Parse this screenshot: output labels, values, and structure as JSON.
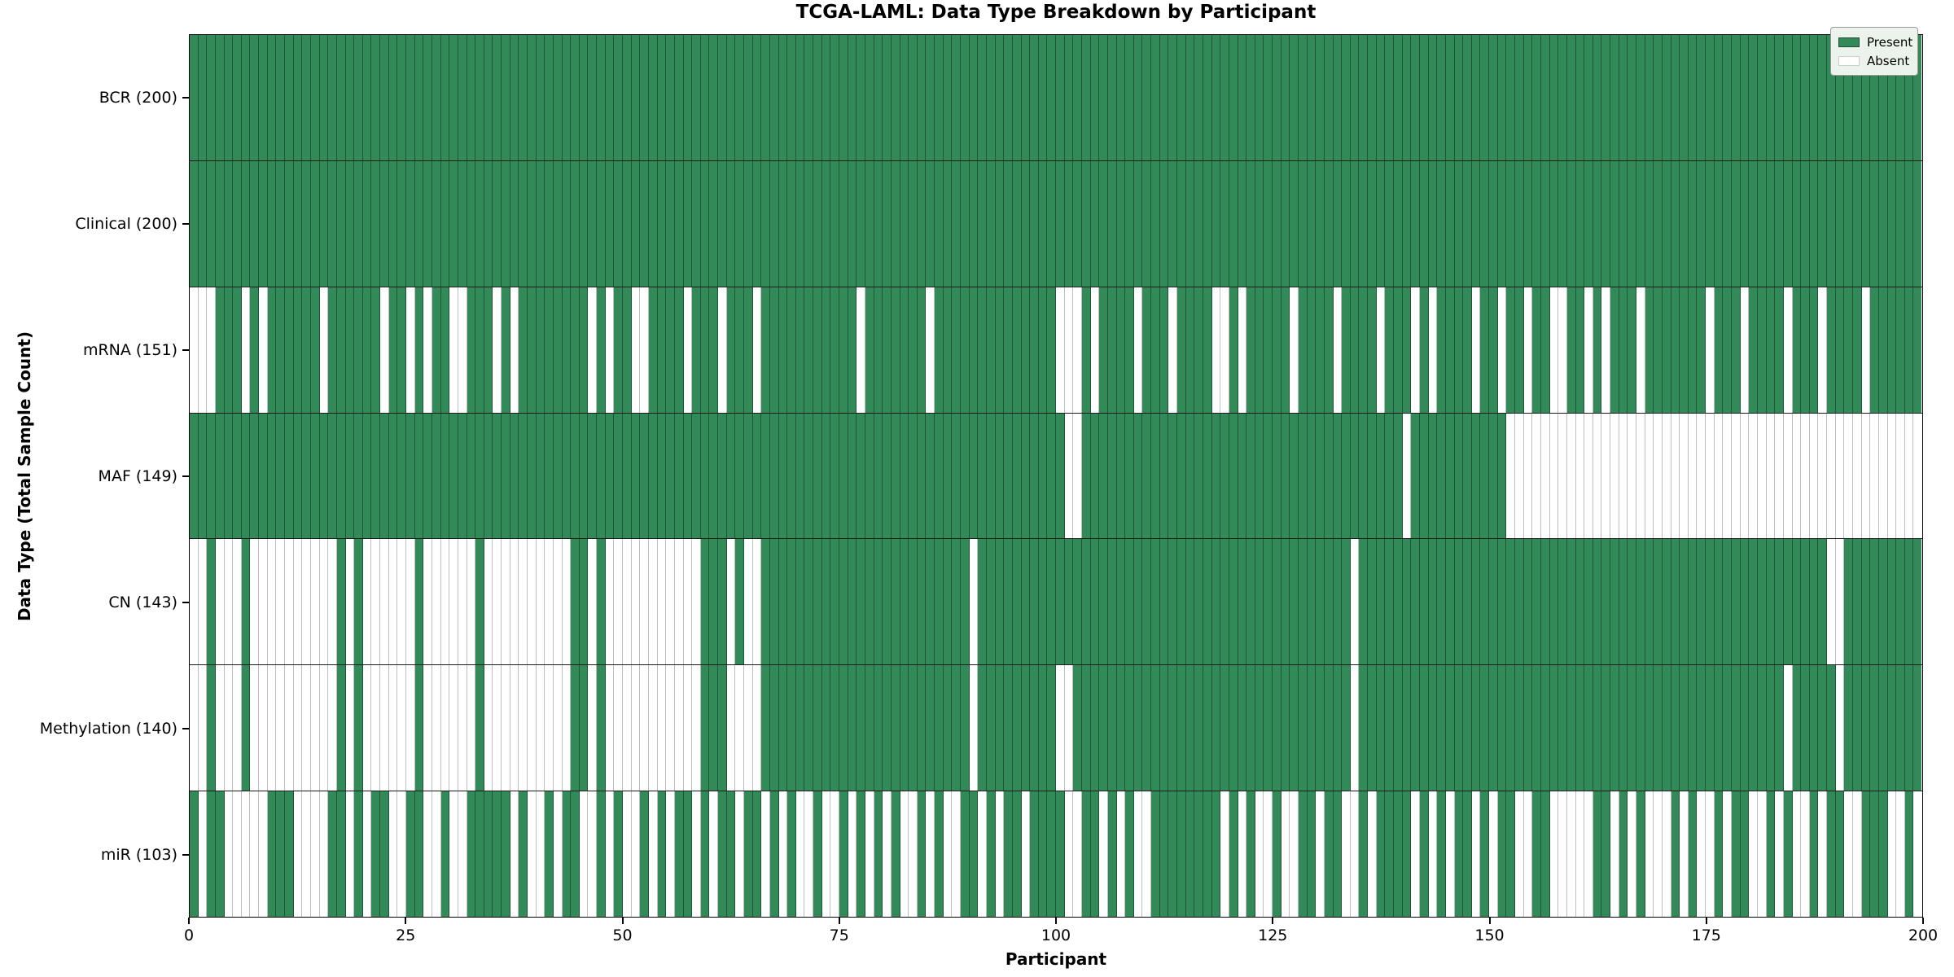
{
  "title": "TCGA-LAML: Data Type Breakdown by Participant",
  "axes": {
    "x_label": "Participant",
    "y_label": "Data Type (Total Sample Count)"
  },
  "legend": {
    "items": [
      {
        "label": "Present",
        "color": "#338a59"
      },
      {
        "label": "Absent",
        "color": "#ffffff"
      }
    ]
  },
  "colors": {
    "present": "#338a59",
    "absent": "#ffffff",
    "cell_edge_present": "rgba(15,40,25,0.55)",
    "cell_edge_absent": "rgba(125,125,125,0.5)",
    "row_divider": "#1a1a1a",
    "plot_border": "#000000",
    "legend_bg": "#ecf2ec",
    "legend_border": "#999999"
  },
  "x_axis": {
    "min": 0,
    "max": 200,
    "ticks": [
      0,
      25,
      50,
      75,
      100,
      125,
      150,
      175,
      200
    ]
  },
  "chart_data": {
    "type": "heatmap",
    "title": "TCGA-LAML: Data Type Breakdown by Participant",
    "xlabel": "Participant",
    "ylabel": "Data Type (Total Sample Count)",
    "legend": [
      "Present",
      "Absent"
    ],
    "n_participants": 200,
    "x_range": [
      0,
      200
    ],
    "rows": [
      {
        "label": "BCR (200)",
        "data_type": "BCR",
        "present_count": 200,
        "absent_count": 0,
        "absent_participants": []
      },
      {
        "label": "Clinical (200)",
        "data_type": "Clinical",
        "present_count": 200,
        "absent_count": 0,
        "absent_participants": []
      },
      {
        "label": "mRNA (151)",
        "data_type": "mRNA",
        "present_count": 151,
        "absent_count": 49,
        "absent_participants": [
          0,
          1,
          2,
          6,
          8,
          15,
          22,
          25,
          27,
          30,
          31,
          35,
          37,
          46,
          48,
          51,
          52,
          57,
          61,
          65,
          77,
          85,
          100,
          101,
          102,
          104,
          109,
          113,
          118,
          119,
          121,
          127,
          132,
          137,
          141,
          143,
          148,
          151,
          154,
          157,
          158,
          161,
          163,
          167,
          175,
          179,
          184,
          188,
          193
        ]
      },
      {
        "label": "MAF (149)",
        "data_type": "MAF",
        "present_count": 149,
        "absent_count": 51,
        "absent_participants": [
          101,
          102,
          140,
          152,
          153,
          154,
          155,
          156,
          157,
          158,
          159,
          160,
          161,
          162,
          163,
          164,
          165,
          166,
          167,
          168,
          169,
          170,
          171,
          172,
          173,
          174,
          175,
          176,
          177,
          178,
          179,
          180,
          181,
          182,
          183,
          184,
          185,
          186,
          187,
          188,
          189,
          190,
          191,
          192,
          193,
          194,
          195,
          196,
          197,
          198,
          199
        ]
      },
      {
        "label": "CN (143)",
        "data_type": "CN",
        "present_count": 143,
        "absent_count": 57,
        "absent_participants": [
          0,
          1,
          3,
          4,
          5,
          7,
          8,
          9,
          10,
          11,
          12,
          13,
          14,
          15,
          16,
          18,
          20,
          21,
          22,
          23,
          24,
          25,
          27,
          28,
          29,
          30,
          31,
          32,
          34,
          35,
          36,
          37,
          38,
          39,
          40,
          41,
          42,
          43,
          46,
          48,
          49,
          50,
          51,
          52,
          53,
          54,
          55,
          56,
          57,
          58,
          62,
          64,
          65,
          90,
          134,
          189,
          190
        ]
      },
      {
        "label": "Methylation (140)",
        "data_type": "Methylation",
        "present_count": 140,
        "absent_count": 60,
        "absent_participants": [
          0,
          1,
          3,
          4,
          5,
          7,
          8,
          9,
          10,
          11,
          12,
          13,
          14,
          15,
          16,
          18,
          20,
          21,
          22,
          23,
          24,
          25,
          27,
          28,
          29,
          30,
          31,
          32,
          34,
          35,
          36,
          37,
          38,
          39,
          40,
          41,
          42,
          43,
          46,
          48,
          49,
          50,
          51,
          52,
          53,
          54,
          55,
          56,
          57,
          58,
          62,
          63,
          64,
          65,
          90,
          100,
          101,
          134,
          184,
          190
        ]
      },
      {
        "label": "miR (103)",
        "data_type": "miR",
        "present_count": 103,
        "absent_count": 97,
        "absent_participants": [
          1,
          4,
          5,
          6,
          7,
          8,
          12,
          13,
          14,
          15,
          18,
          20,
          23,
          24,
          27,
          28,
          30,
          31,
          37,
          39,
          40,
          42,
          45,
          46,
          48,
          50,
          51,
          53,
          55,
          58,
          60,
          63,
          66,
          68,
          70,
          71,
          73,
          74,
          76,
          78,
          80,
          82,
          83,
          85,
          87,
          88,
          91,
          93,
          96,
          101,
          102,
          105,
          107,
          109,
          110,
          119,
          121,
          123,
          124,
          126,
          127,
          130,
          133,
          134,
          136,
          141,
          143,
          145,
          148,
          150,
          153,
          154,
          157,
          158,
          159,
          160,
          161,
          164,
          166,
          168,
          169,
          170,
          172,
          174,
          175,
          177,
          180,
          181,
          183,
          185,
          186,
          188,
          191,
          192,
          196,
          197,
          199
        ]
      }
    ]
  }
}
